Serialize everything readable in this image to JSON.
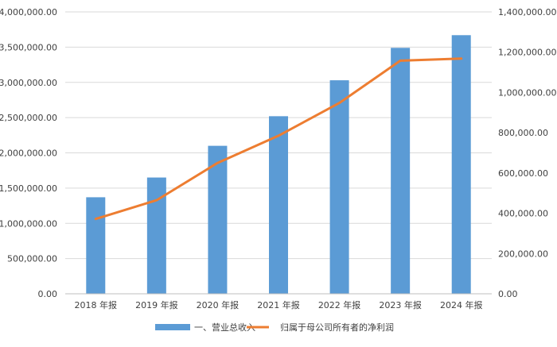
{
  "chart_data": {
    "type": "bar",
    "categories": [
      "2018 年报",
      "2019 年报",
      "2020 年报",
      "2021 年报",
      "2022 年报",
      "2023 年报",
      "2024 年报"
    ],
    "series": [
      {
        "name": "一、营业总收入",
        "type": "bar",
        "axis": "left",
        "color": "#5B9BD5",
        "values": [
          1370000,
          1650000,
          2100000,
          2520000,
          3030000,
          3490000,
          3670000
        ]
      },
      {
        "name": "归属于母公司所有者的净利润",
        "type": "line",
        "axis": "right",
        "color": "#ED7D31",
        "values": [
          372000,
          465000,
          650000,
          785000,
          948000,
          1158000,
          1168000
        ]
      }
    ],
    "y_left": {
      "ylim": [
        0,
        4000000
      ],
      "ticks": [
        0,
        500000,
        1000000,
        1500000,
        2000000,
        2500000,
        3000000,
        3500000,
        4000000
      ],
      "tick_labels": [
        "0.00",
        "500,000.00",
        "1,000,000.00",
        "1,500,000.00",
        "2,000,000.00",
        "2,500,000.00",
        "3,000,000.00",
        "3,500,000.00",
        "4,000,000.00"
      ]
    },
    "y_right": {
      "ylim": [
        0,
        1400000
      ],
      "ticks": [
        0,
        200000,
        400000,
        600000,
        800000,
        1000000,
        1200000,
        1400000
      ],
      "tick_labels": [
        "0.00",
        "200,000.00",
        "400,000.00",
        "600,000.00",
        "800,000.00",
        "1,000,000.00",
        "1,200,000.00",
        "1,400,000.00"
      ]
    },
    "grid": true,
    "legend_position": "bottom",
    "gridline_color": "#D9D9D9"
  }
}
